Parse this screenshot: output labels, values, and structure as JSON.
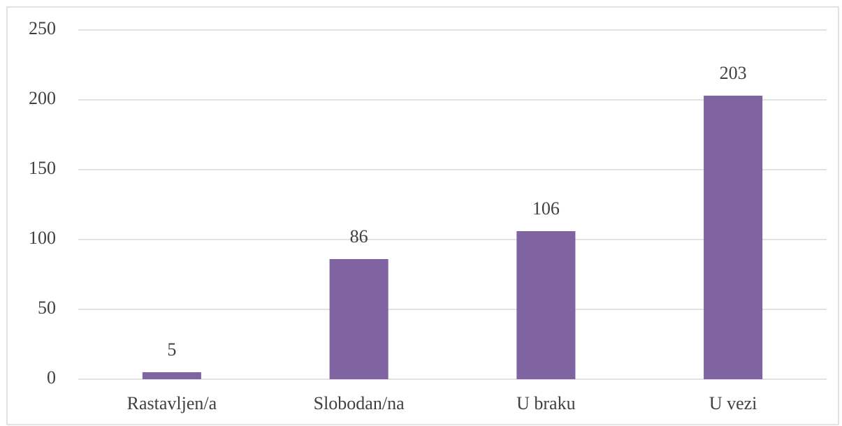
{
  "chart_data": {
    "type": "bar",
    "categories": [
      "Rastavljen/a",
      "Slobodan/na",
      "U braku",
      "U vezi"
    ],
    "values": [
      5,
      86,
      106,
      203
    ],
    "color": "#8064a2",
    "ylim": [
      0,
      250
    ],
    "yticks": [
      0,
      50,
      100,
      150,
      200,
      250
    ],
    "grid": true
  }
}
